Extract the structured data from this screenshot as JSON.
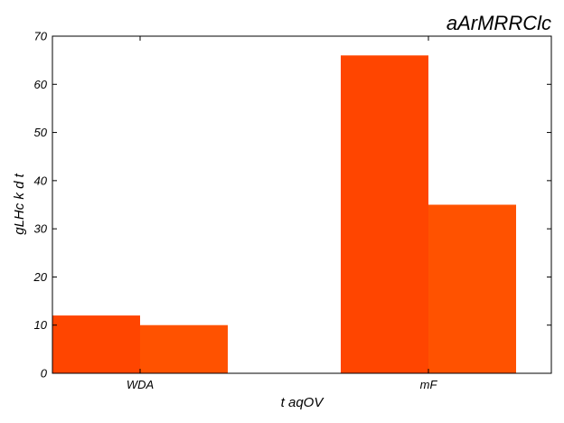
{
  "chart_data": {
    "type": "bar",
    "title": "aArMRRClc",
    "xlabel": "t aqOV",
    "ylabel": "gLHc k d t",
    "categories": [
      "WDA",
      "mF"
    ],
    "series": [
      {
        "values": [
          12,
          66
        ],
        "color": "#ff4500"
      },
      {
        "values": [
          10,
          35
        ],
        "color": "#ff5200"
      }
    ],
    "ylim": [
      0,
      70
    ],
    "yticks": [
      0,
      10,
      20,
      30,
      40,
      50,
      60,
      70
    ],
    "grid": false,
    "legend": "none"
  }
}
